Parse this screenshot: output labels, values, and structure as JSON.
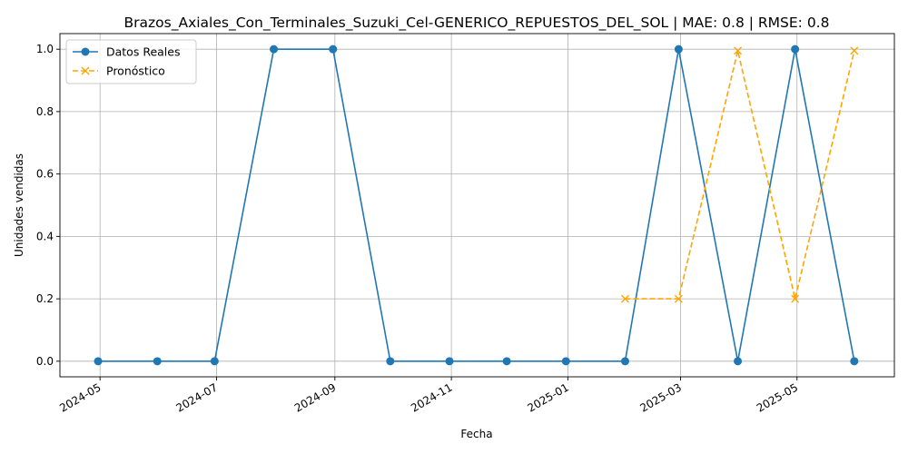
{
  "chart_data": {
    "type": "line",
    "title": "Brazos_Axiales_Con_Terminales_Suzuki_Cel-GENERICO_REPUESTOS_DEL_SOL | MAE: 0.8 | RMSE: 0.8",
    "xlabel": "Fecha",
    "ylabel": "Unidades vendidas",
    "x_ticks": [
      "2024-05",
      "2024-07",
      "2024-09",
      "2024-11",
      "2025-01",
      "2025-03",
      "2025-05"
    ],
    "y_ticks": [
      "0.0",
      "0.2",
      "0.4",
      "0.6",
      "0.8",
      "1.0"
    ],
    "ylim": [
      -0.05,
      1.05
    ],
    "xlim": [
      "2024-04-10",
      "2025-06-21"
    ],
    "grid": true,
    "legend_position": "top-left",
    "series": [
      {
        "name": "Datos Reales",
        "color": "#1f77b4",
        "style": "solid",
        "marker": "circle",
        "x": [
          "2024-04-30",
          "2024-05-31",
          "2024-06-30",
          "2024-07-31",
          "2024-08-31",
          "2024-09-30",
          "2024-10-31",
          "2024-11-30",
          "2024-12-31",
          "2025-01-31",
          "2025-02-28",
          "2025-03-31",
          "2025-04-30",
          "2025-05-31"
        ],
        "values": [
          0,
          0,
          0,
          1,
          1,
          0,
          0,
          0,
          0,
          0,
          1,
          0,
          1,
          0
        ]
      },
      {
        "name": "Pronóstico",
        "color": "#ffa500",
        "style": "dashed",
        "marker": "x",
        "x": [
          "2025-01-31",
          "2025-02-28",
          "2025-03-31",
          "2025-04-30",
          "2025-05-31"
        ],
        "values": [
          0.2,
          0.2,
          0.995,
          0.2,
          0.995
        ]
      }
    ]
  }
}
